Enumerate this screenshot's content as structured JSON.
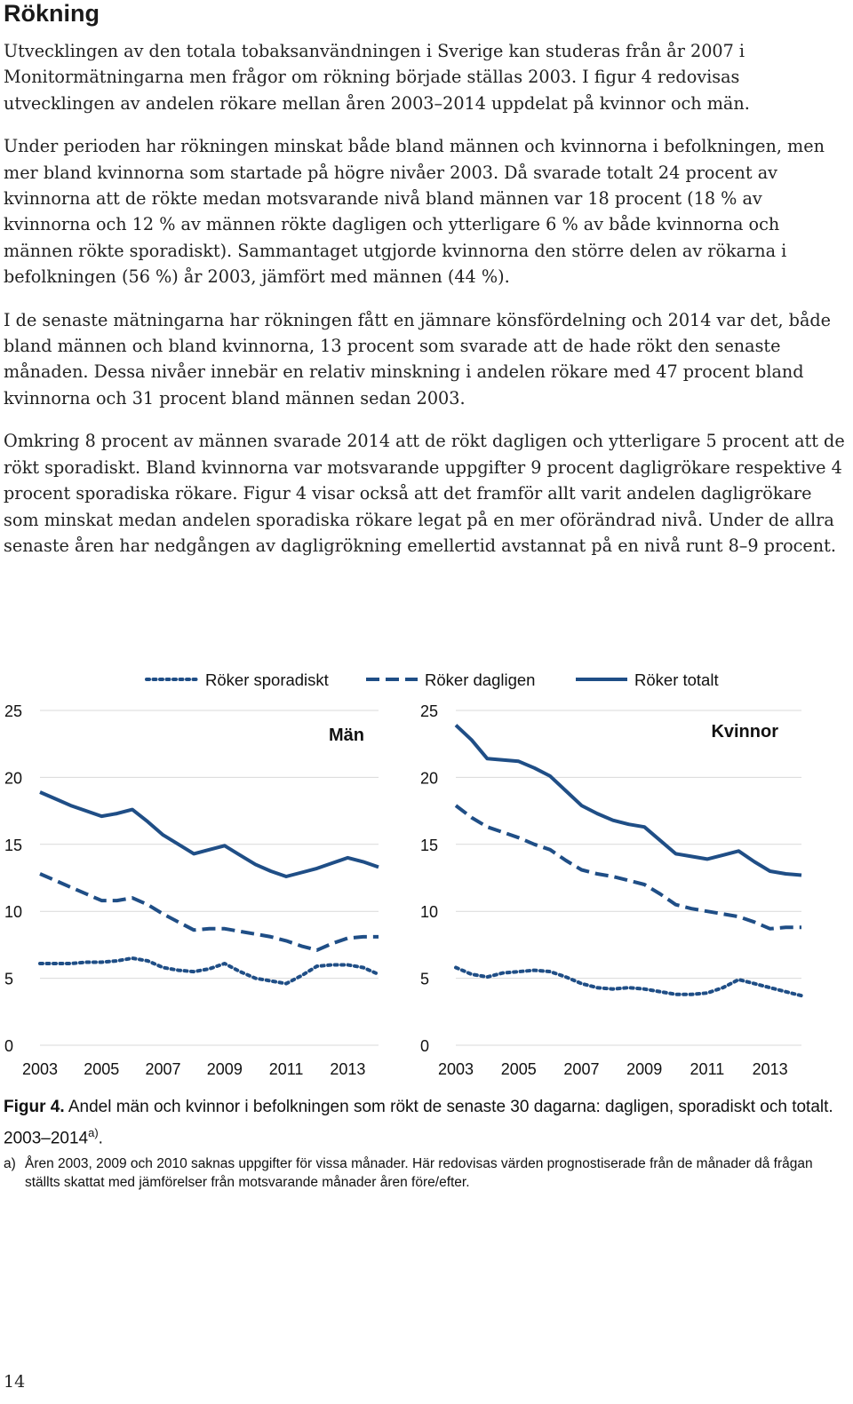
{
  "heading": "Rökning",
  "paragraphs": [
    "Utvecklingen av den totala tobaksanvändningen i Sverige kan studeras från år 2007 i Monitormätningarna men frågor om rökning började ställas 2003. I figur 4 redovisas utvecklingen av andelen rökare mellan åren 2003–2014 uppdelat på kvinnor och män.",
    "Under perioden har rökningen minskat både bland männen och kvinnorna i befolkningen, men mer bland kvinnorna som startade på högre nivåer 2003. Då svarade totalt 24 procent av kvinnorna att de rökte medan motsvarande nivå bland männen var 18 procent (18 % av kvinnorna och 12 % av männen rökte dagligen och ytterligare 6 % av både kvinnorna och männen rökte sporadiskt). Sammantaget utgjorde kvinnorna den större delen av rökarna i befolkningen (56 %) år 2003, jämfört med männen (44 %).",
    "I de senaste mätningarna har rökningen fått en jämnare könsfördelning och 2014 var det, både bland männen och bland kvinnorna, 13 procent som svarade att de hade rökt den senaste månaden. Dessa nivåer innebär en relativ minskning i andelen rökare med 47 procent bland kvinnorna och 31 procent bland männen sedan 2003.",
    "Omkring 8 procent av männen svarade 2014 att de rökt dagligen och ytterligare 5 procent att de rökt sporadiskt. Bland kvinnorna var motsvarande uppgifter 9 procent dagligrökare respektive 4 procent sporadiska rökare. Figur 4 visar också att det framför allt varit andelen dagligrökare som minskat medan andelen sporadiska rökare legat på en mer oförändrad nivå. Under de allra senaste åren har nedgången av dagligrökning emellertid avstannat på en nivå runt 8–9 procent."
  ],
  "chart_data": {
    "type": "line",
    "line_color": "#1f4e86",
    "legend": [
      {
        "label": "Röker sporadiskt",
        "style": "dotted"
      },
      {
        "label": "Röker dagligen",
        "style": "dashed"
      },
      {
        "label": "Röker totalt",
        "style": "solid"
      }
    ],
    "x_tick_labels": [
      "2003",
      "2005",
      "2007",
      "2009",
      "2011",
      "2013"
    ],
    "y_tick_labels": [
      "0",
      "5",
      "10",
      "15",
      "20",
      "25"
    ],
    "ylim": [
      0,
      25
    ],
    "xlim": [
      2003,
      2014
    ],
    "panels": [
      {
        "title": "Män",
        "x": [
          2003,
          2003.5,
          2004,
          2004.5,
          2005,
          2005.5,
          2006,
          2006.5,
          2007,
          2007.5,
          2008,
          2008.5,
          2009,
          2009.5,
          2010,
          2010.5,
          2011,
          2011.5,
          2012,
          2012.5,
          2013,
          2013.5,
          2014
        ],
        "series": [
          {
            "name": "Röker sporadiskt",
            "values": [
              6.1,
              6.1,
              6.1,
              6.2,
              6.2,
              6.3,
              6.5,
              6.3,
              5.8,
              5.6,
              5.5,
              5.7,
              6.1,
              5.5,
              5.0,
              4.8,
              4.6,
              5.2,
              5.9,
              6.0,
              6.0,
              5.8,
              5.3
            ]
          },
          {
            "name": "Röker dagligen",
            "values": [
              12.8,
              12.3,
              11.8,
              11.3,
              10.8,
              10.8,
              11.0,
              10.5,
              9.8,
              9.2,
              8.6,
              8.7,
              8.7,
              8.5,
              8.3,
              8.1,
              7.8,
              7.4,
              7.1,
              7.6,
              8.0,
              8.1,
              8.1
            ]
          },
          {
            "name": "Röker totalt",
            "values": [
              18.9,
              18.4,
              17.9,
              17.5,
              17.1,
              17.3,
              17.6,
              16.7,
              15.7,
              15.0,
              14.3,
              14.6,
              14.9,
              14.2,
              13.5,
              13.0,
              12.6,
              12.9,
              13.2,
              13.6,
              14.0,
              13.7,
              13.3
            ]
          }
        ]
      },
      {
        "title": "Kvinnor",
        "x": [
          2003,
          2003.5,
          2004,
          2004.5,
          2005,
          2005.5,
          2006,
          2006.5,
          2007,
          2007.5,
          2008,
          2008.5,
          2009,
          2009.5,
          2010,
          2010.5,
          2011,
          2011.5,
          2012,
          2012.5,
          2013,
          2013.5,
          2014
        ],
        "series": [
          {
            "name": "Röker sporadiskt",
            "values": [
              5.8,
              5.3,
              5.1,
              5.4,
              5.5,
              5.6,
              5.5,
              5.1,
              4.6,
              4.3,
              4.2,
              4.3,
              4.2,
              4.0,
              3.8,
              3.8,
              3.9,
              4.3,
              4.9,
              4.6,
              4.3,
              4.0,
              3.7
            ]
          },
          {
            "name": "Röker dagligen",
            "values": [
              17.9,
              17.0,
              16.3,
              15.9,
              15.5,
              15.0,
              14.6,
              13.8,
              13.1,
              12.8,
              12.6,
              12.3,
              12.0,
              11.3,
              10.5,
              10.2,
              10.0,
              9.8,
              9.6,
              9.2,
              8.7,
              8.8,
              8.8
            ]
          },
          {
            "name": "Röker totalt",
            "values": [
              23.9,
              22.8,
              21.4,
              21.3,
              21.2,
              20.7,
              20.1,
              19.0,
              17.9,
              17.3,
              16.8,
              16.5,
              16.3,
              15.3,
              14.3,
              14.1,
              13.9,
              14.2,
              14.5,
              13.7,
              13.0,
              12.8,
              12.7
            ]
          }
        ]
      }
    ]
  },
  "caption": {
    "label": "Figur 4.",
    "text": " Andel män och kvinnor i befolkningen som rökt de senaste 30 dagarna: dagligen, sporadiskt och totalt. 2003–2014",
    "sup": "a)",
    "end": "."
  },
  "footnote": {
    "mark": "a)",
    "text": "Åren 2003, 2009 och 2010 saknas uppgifter för vissa månader. Här redovisas värden prognostiserade från de månader då frågan ställts skattat med jämförelser från motsvarande månader åren före/efter."
  },
  "page_number": "14"
}
